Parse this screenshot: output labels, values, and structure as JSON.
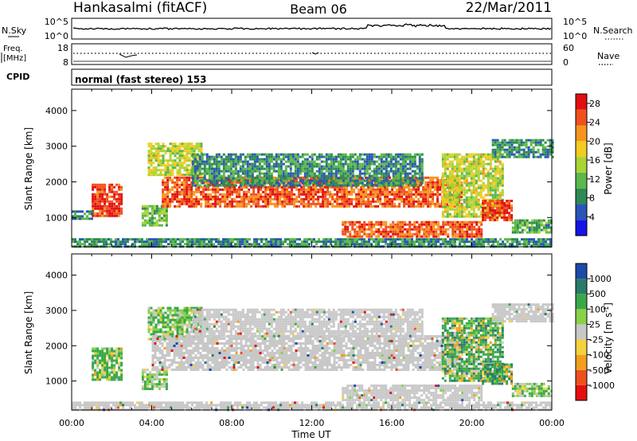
{
  "header": {
    "station": "Hankasalmi (fitACF)",
    "beam": "Beam 06",
    "date": "22/Mar/2011"
  },
  "noise_panel": {
    "left_label": "N.Sky",
    "right_label": "N.Search",
    "left_ticks": [
      "10^5",
      "10^0"
    ],
    "right_ticks": [
      "10^5",
      "10^0"
    ]
  },
  "freq_panel": {
    "left_label_1": "Freq.",
    "left_label_2": "[MHz]",
    "right_label": "Nave",
    "left_ticks": [
      "18",
      "8"
    ],
    "right_ticks": [
      "60",
      "0"
    ]
  },
  "cpid": {
    "label": "CPID",
    "mode": "normal (fast stereo) 153"
  },
  "colors": {
    "power_scale": [
      "#1414e6",
      "#2a55b8",
      "#2d8a55",
      "#5cb84a",
      "#a8d436",
      "#f2cc22",
      "#f7941e",
      "#f0501e",
      "#e10f0f"
    ],
    "velocity_scale": [
      "#e60f0f",
      "#f0501e",
      "#f0a01e",
      "#f5d23c",
      "#c8c8c8",
      "#8ad14a",
      "#3aa84a",
      "#2a7a6a",
      "#1c4aa8"
    ]
  },
  "chart_data": [
    {
      "type": "heatmap",
      "title": "",
      "ylabel": "Slant Range [km]",
      "xlabel": "",
      "x_ticks": [
        "00:00",
        "04:00",
        "08:00",
        "12:00",
        "16:00",
        "20:00",
        "00:00"
      ],
      "xlim_hours": [
        0,
        24
      ],
      "ylim": [
        180,
        4600
      ],
      "y_ticks": [
        1000,
        2000,
        3000,
        4000
      ],
      "colorbar": {
        "label": "Power [dB]",
        "ticks": [
          4,
          8,
          12,
          16,
          20,
          24,
          28
        ],
        "range": [
          0,
          30
        ]
      },
      "regions": [
        {
          "t0": 1.0,
          "t1": 2.5,
          "r0": 1050,
          "r1": 1950,
          "level": 28
        },
        {
          "t0": 0.0,
          "t1": 1.0,
          "r0": 980,
          "r1": 1200,
          "level": 8
        },
        {
          "t0": 3.5,
          "t1": 4.8,
          "r0": 780,
          "r1": 1350,
          "level": 12
        },
        {
          "t0": 3.8,
          "t1": 6.5,
          "r0": 2200,
          "r1": 3100,
          "level": 16
        },
        {
          "t0": 4.5,
          "t1": 19.5,
          "r0": 1300,
          "r1": 2150,
          "level": 26
        },
        {
          "t0": 6.0,
          "t1": 17.5,
          "r0": 1900,
          "r1": 2800,
          "level": 8
        },
        {
          "t0": 13.5,
          "t1": 20.5,
          "r0": 450,
          "r1": 900,
          "level": 26
        },
        {
          "t0": 18.5,
          "t1": 21.5,
          "r0": 1000,
          "r1": 2800,
          "level": 16
        },
        {
          "t0": 20.5,
          "t1": 22.0,
          "r0": 900,
          "r1": 1500,
          "level": 28
        },
        {
          "t0": 21.0,
          "t1": 24.0,
          "r0": 2700,
          "r1": 3200,
          "level": 8
        },
        {
          "t0": 22.0,
          "t1": 24.0,
          "r0": 600,
          "r1": 950,
          "level": 10
        },
        {
          "t0": 0.0,
          "t1": 24.0,
          "r0": 180,
          "r1": 420,
          "level": 8
        }
      ]
    },
    {
      "type": "heatmap",
      "title": "",
      "ylabel": "Slant Range [km]",
      "xlabel": "Time UT",
      "x_ticks": [
        "00:00",
        "04:00",
        "08:00",
        "12:00",
        "16:00",
        "20:00",
        "00:00"
      ],
      "xlim_hours": [
        0,
        24
      ],
      "ylim": [
        180,
        4600
      ],
      "y_ticks": [
        1000,
        2000,
        3000,
        4000
      ],
      "colorbar": {
        "label": "Velocity [m s^-1]",
        "ticks": [
          1000,
          500,
          100,
          25,
          -25,
          -100,
          -500,
          -1000
        ]
      },
      "regions": [
        {
          "t0": 1.0,
          "t1": 2.5,
          "r0": 1050,
          "r1": 1950,
          "value": 300
        },
        {
          "t0": 3.5,
          "t1": 4.8,
          "r0": 780,
          "r1": 1350,
          "value": 100
        },
        {
          "t0": 3.8,
          "t1": 6.5,
          "r0": 2200,
          "r1": 3100,
          "value": 150
        },
        {
          "t0": 4.0,
          "t1": 19.5,
          "r0": 1300,
          "r1": 2300,
          "value": 0
        },
        {
          "t0": 6.0,
          "t1": 17.5,
          "r0": 2300,
          "r1": 3050,
          "value": 0
        },
        {
          "t0": 13.5,
          "t1": 20.5,
          "r0": 450,
          "r1": 900,
          "value": 0
        },
        {
          "t0": 18.5,
          "t1": 21.5,
          "r0": 1000,
          "r1": 2800,
          "value": 400
        },
        {
          "t0": 20.5,
          "t1": 22.0,
          "r0": 900,
          "r1": 1500,
          "value": 600
        },
        {
          "t0": 21.0,
          "t1": 24.0,
          "r0": 2700,
          "r1": 3200,
          "value": 0
        },
        {
          "t0": 22.0,
          "t1": 24.0,
          "r0": 600,
          "r1": 950,
          "value": 120
        },
        {
          "t0": 0.0,
          "t1": 24.0,
          "r0": 180,
          "r1": 420,
          "value": 0
        }
      ]
    }
  ]
}
